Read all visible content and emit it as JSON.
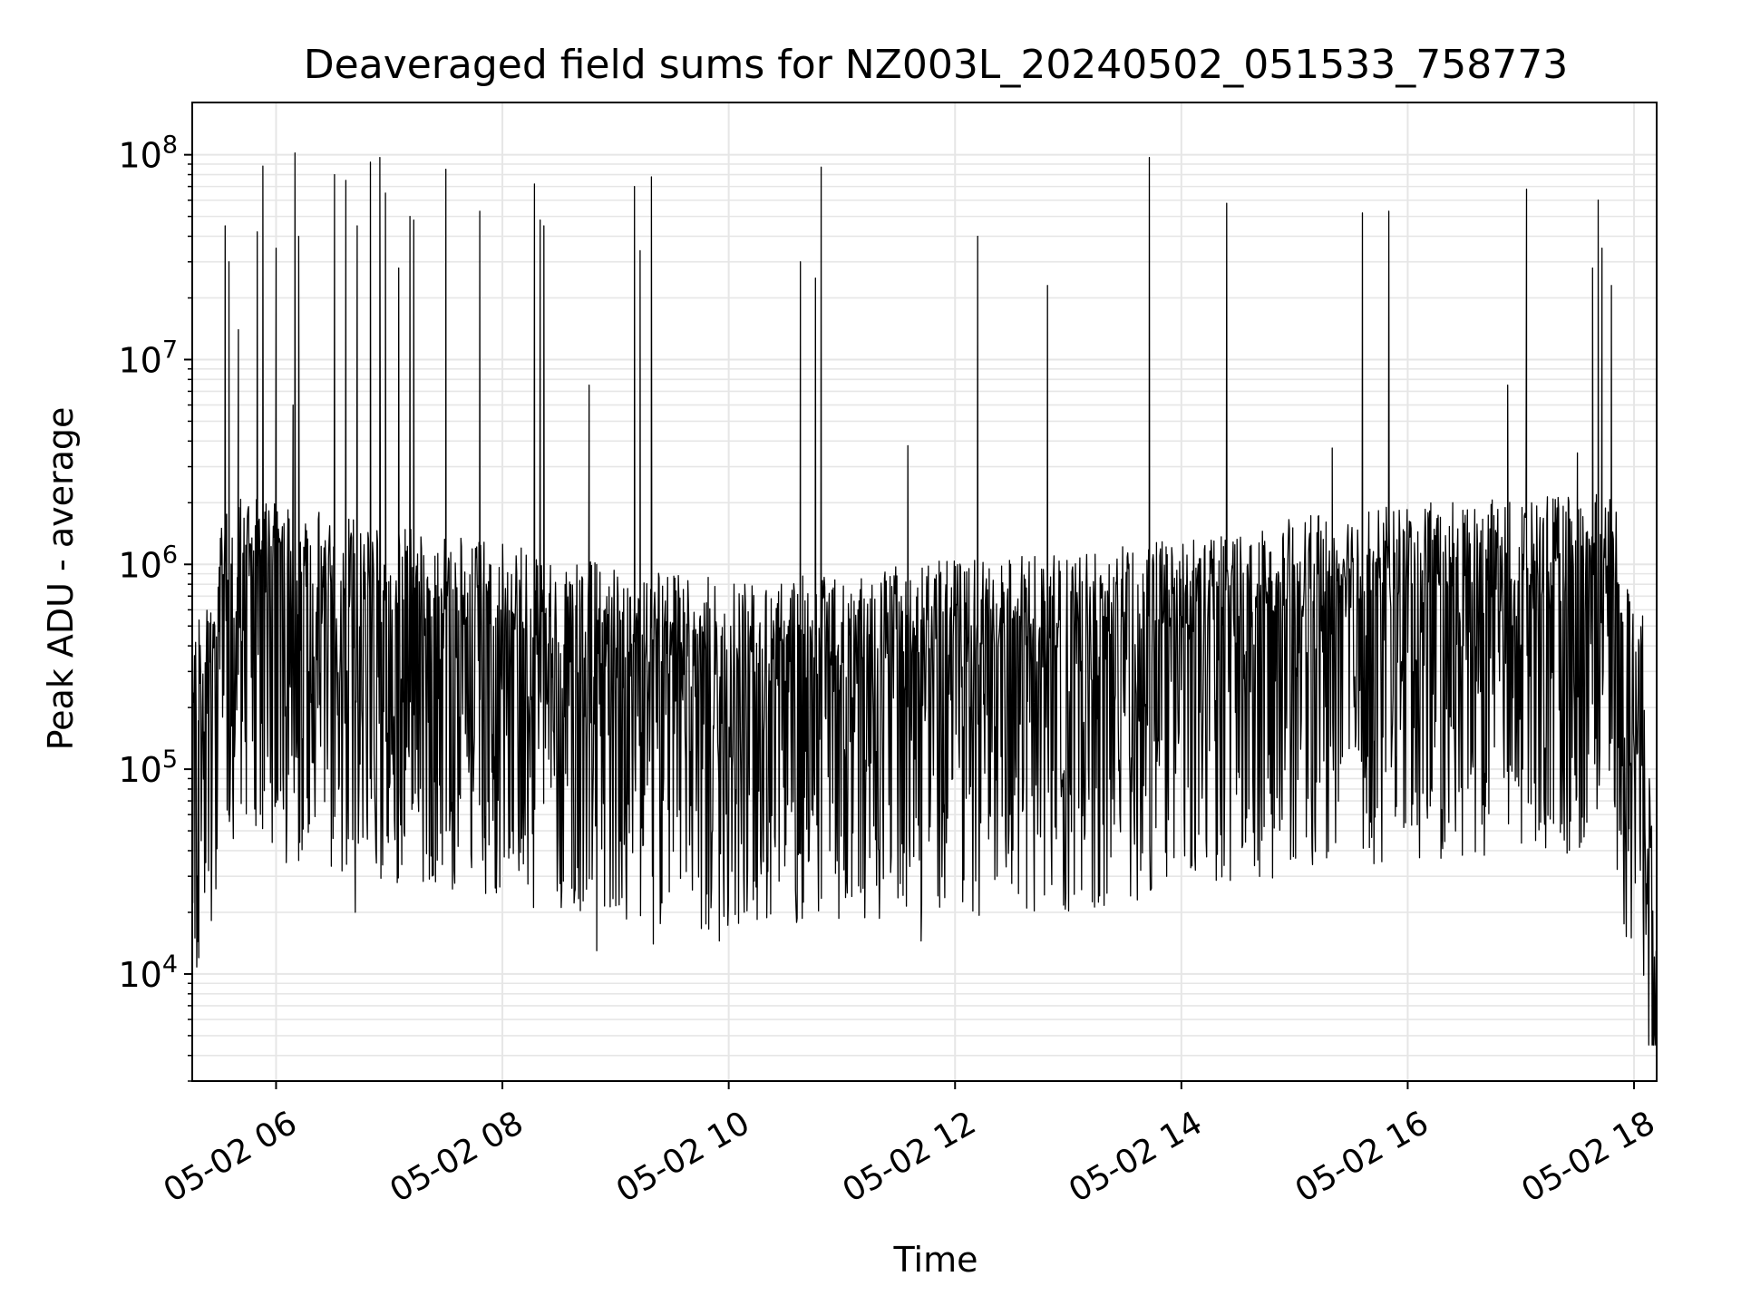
{
  "chart_data": {
    "type": "line",
    "title": "Deaveraged field sums for NZ003L_20240502_051533_758773",
    "xlabel": "Time",
    "ylabel": "Peak ADU - average",
    "yscale": "log",
    "ylim": [
      3000,
      180000000
    ],
    "xlim": [
      "05-02 05:15:33",
      "05-02 18:12"
    ],
    "grid": true,
    "line_color": "#000000",
    "grid_color": "#e6e6e6",
    "x_ticks": [
      {
        "t": "05-02 06:00",
        "label": "05-02 06"
      },
      {
        "t": "05-02 08:00",
        "label": "05-02 08"
      },
      {
        "t": "05-02 10:00",
        "label": "05-02 10"
      },
      {
        "t": "05-02 12:00",
        "label": "05-02 12"
      },
      {
        "t": "05-02 14:00",
        "label": "05-02 14"
      },
      {
        "t": "05-02 16:00",
        "label": "05-02 16"
      },
      {
        "t": "05-02 18:00",
        "label": "05-02 18"
      }
    ],
    "y_ticks": [
      {
        "v": 10000,
        "base": "10",
        "exp": "4"
      },
      {
        "v": 100000,
        "base": "10",
        "exp": "5"
      },
      {
        "v": 1000000,
        "base": "10",
        "exp": "6"
      },
      {
        "v": 10000000,
        "base": "10",
        "exp": "7"
      },
      {
        "v": 100000000,
        "base": "10",
        "exp": "8"
      }
    ],
    "baseline_trend": [
      [
        "05-02 05:16",
        150000
      ],
      [
        "05-02 05:25",
        300000
      ],
      [
        "05-02 05:35",
        800000
      ],
      [
        "05-02 06:00",
        700000
      ],
      [
        "05-02 07:00",
        550000
      ],
      [
        "05-02 08:00",
        450000
      ],
      [
        "05-02 09:00",
        350000
      ],
      [
        "05-02 10:00",
        300000
      ],
      [
        "05-02 11:00",
        320000
      ],
      [
        "05-02 12:00",
        380000
      ],
      [
        "05-02 13:00",
        400000
      ],
      [
        "05-02 14:00",
        480000
      ],
      [
        "05-02 15:00",
        600000
      ],
      [
        "05-02 16:00",
        700000
      ],
      [
        "05-02 17:00",
        750000
      ],
      [
        "05-02 17:50",
        800000
      ],
      [
        "05-02 17:55",
        300000
      ],
      [
        "05-02 18:05",
        200000
      ],
      [
        "05-02 18:12",
        6000
      ]
    ],
    "spikes": [
      [
        "05-02 05:33",
        45000000
      ],
      [
        "05-02 05:35",
        30000000
      ],
      [
        "05-02 05:40",
        14000000
      ],
      [
        "05-02 05:50",
        42000000
      ],
      [
        "05-02 05:53",
        88000000
      ],
      [
        "05-02 06:00",
        35000000
      ],
      [
        "05-02 06:09",
        6000000
      ],
      [
        "05-02 06:10",
        102000000
      ],
      [
        "05-02 06:12",
        40000000
      ],
      [
        "05-02 06:31",
        80000000
      ],
      [
        "05-02 06:37",
        75000000
      ],
      [
        "05-02 06:43",
        45000000
      ],
      [
        "05-02 06:50",
        92000000
      ],
      [
        "05-02 06:55",
        97000000
      ],
      [
        "05-02 06:58",
        65000000
      ],
      [
        "05-02 07:05",
        28000000
      ],
      [
        "05-02 07:11",
        50000000
      ],
      [
        "05-02 07:13",
        48000000
      ],
      [
        "05-02 07:30",
        85000000
      ],
      [
        "05-02 07:48",
        53000000
      ],
      [
        "05-02 08:17",
        72000000
      ],
      [
        "05-02 08:20",
        48000000
      ],
      [
        "05-02 08:22",
        45000000
      ],
      [
        "05-02 08:46",
        7500000
      ],
      [
        "05-02 09:10",
        70000000
      ],
      [
        "05-02 09:13",
        34000000
      ],
      [
        "05-02 09:19",
        78000000
      ],
      [
        "05-02 10:38",
        30000000
      ],
      [
        "05-02 10:46",
        25000000
      ],
      [
        "05-02 10:49",
        87000000
      ],
      [
        "05-02 11:35",
        3800000
      ],
      [
        "05-02 12:12",
        40000000
      ],
      [
        "05-02 12:49",
        23000000
      ],
      [
        "05-02 13:43",
        97000000
      ],
      [
        "05-02 14:24",
        58000000
      ],
      [
        "05-02 15:20",
        3700000
      ],
      [
        "05-02 15:36",
        52000000
      ],
      [
        "05-02 15:50",
        53000000
      ],
      [
        "05-02 16:53",
        7500000
      ],
      [
        "05-02 17:03",
        68000000
      ],
      [
        "05-02 17:30",
        3500000
      ],
      [
        "05-02 17:38",
        28000000
      ],
      [
        "05-02 17:41",
        60000000
      ],
      [
        "05-02 17:43",
        35000000
      ],
      [
        "05-02 17:48",
        23000000
      ]
    ],
    "lows": [
      [
        "05-02 05:17",
        15000
      ],
      [
        "05-02 05:19",
        12000
      ],
      [
        "05-02 06:42",
        20000
      ],
      [
        "05-02 08:50",
        13000
      ],
      [
        "05-02 09:20",
        14000
      ],
      [
        "05-02 09:55",
        14500
      ],
      [
        "05-02 11:42",
        14500
      ],
      [
        "05-02 12:38",
        21000
      ],
      [
        "05-02 14:05",
        33000
      ],
      [
        "05-02 17:57",
        40000
      ],
      [
        "05-02 18:12",
        6000
      ]
    ]
  }
}
